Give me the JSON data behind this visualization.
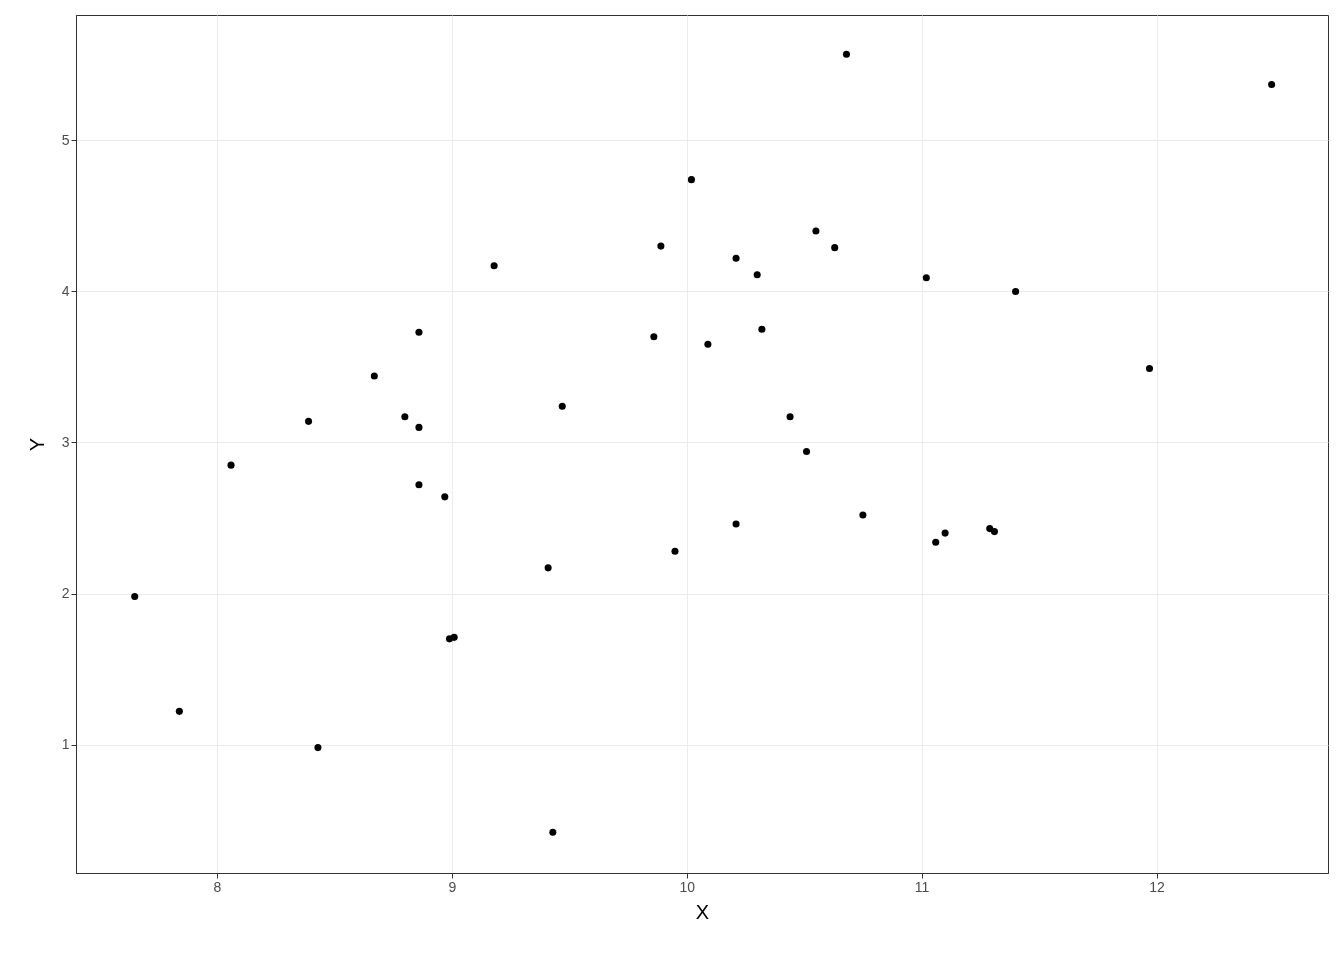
{
  "chart_data": {
    "type": "scatter",
    "xlabel": "X",
    "ylabel": "Y",
    "x": [
      7.65,
      7.84,
      8.06,
      8.39,
      8.43,
      8.67,
      8.8,
      8.86,
      8.86,
      8.86,
      8.97,
      8.99,
      9.01,
      9.18,
      9.41,
      9.43,
      9.47,
      9.86,
      9.89,
      9.95,
      10.02,
      10.09,
      10.21,
      10.21,
      10.3,
      10.32,
      10.44,
      10.51,
      10.55,
      10.63,
      10.68,
      10.75,
      11.02,
      11.06,
      11.1,
      11.29,
      11.31,
      11.4,
      11.97,
      12.49
    ],
    "series": [
      {
        "color": "#000000",
        "values": [
          1.98,
          1.22,
          2.85,
          3.14,
          0.98,
          3.44,
          3.17,
          3.73,
          3.1,
          2.72,
          2.64,
          1.7,
          1.71,
          4.17,
          2.17,
          0.42,
          3.24,
          3.7,
          4.3,
          2.28,
          4.74,
          3.65,
          4.22,
          2.46,
          4.11,
          3.75,
          3.17,
          2.94,
          4.4,
          4.29,
          5.57,
          2.52,
          4.09,
          2.34,
          2.4,
          2.43,
          2.41,
          4.0,
          3.49,
          5.37
        ]
      }
    ],
    "xlim": [
      7.4,
      12.73
    ],
    "ylim": [
      0.15,
      5.83
    ],
    "xticks": [
      8,
      9,
      10,
      11,
      12
    ],
    "yticks": [
      1,
      2,
      3,
      4,
      5
    ],
    "grid": true,
    "marker": "circle"
  }
}
